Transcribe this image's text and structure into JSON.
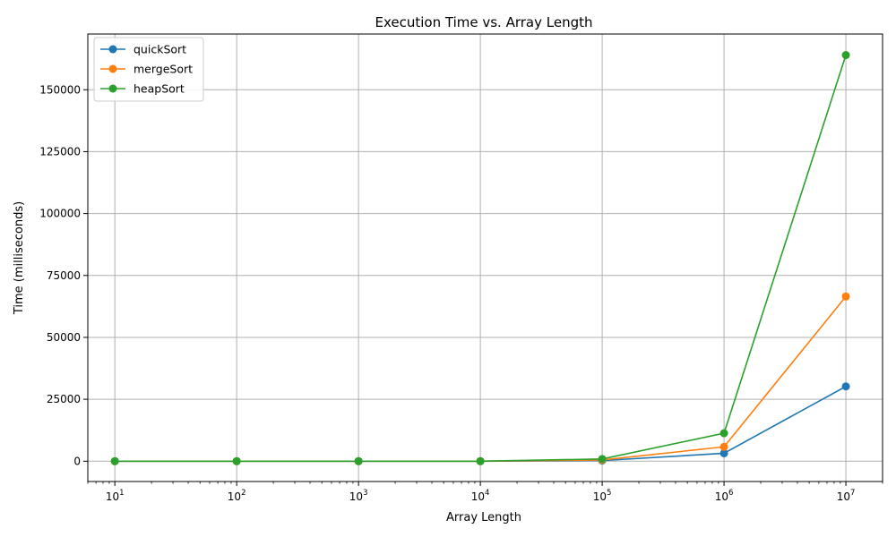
{
  "chart_data": {
    "type": "line",
    "title": "Execution Time vs. Array Length",
    "xlabel": "Array Length",
    "ylabel": "Time (milliseconds)",
    "x_scale": "log",
    "xlim": [
      6,
      20000000
    ],
    "ylim": [
      -8200,
      172500
    ],
    "x": [
      10,
      100,
      1000,
      10000,
      100000,
      1000000,
      10000000
    ],
    "x_ticks": [
      {
        "value": 10,
        "base": "10",
        "exp": "1"
      },
      {
        "value": 100,
        "base": "10",
        "exp": "2"
      },
      {
        "value": 1000,
        "base": "10",
        "exp": "3"
      },
      {
        "value": 10000,
        "base": "10",
        "exp": "4"
      },
      {
        "value": 100000,
        "base": "10",
        "exp": "5"
      },
      {
        "value": 1000000,
        "base": "10",
        "exp": "6"
      },
      {
        "value": 10000000,
        "base": "10",
        "exp": "7"
      }
    ],
    "y_ticks": [
      {
        "value": 0,
        "label": "0"
      },
      {
        "value": 25000,
        "label": "25000"
      },
      {
        "value": 50000,
        "label": "50000"
      },
      {
        "value": 75000,
        "label": "75000"
      },
      {
        "value": 100000,
        "label": "100000"
      },
      {
        "value": 125000,
        "label": "125000"
      },
      {
        "value": 150000,
        "label": "150000"
      }
    ],
    "grid": true,
    "legend_position": "top-left",
    "series": [
      {
        "name": "quickSort",
        "color": "#1f77b4",
        "values": [
          0,
          0,
          0,
          5,
          250,
          3200,
          30200
        ]
      },
      {
        "name": "mergeSort",
        "color": "#ff7f0e",
        "values": [
          0,
          0,
          0,
          5,
          500,
          5800,
          66500
        ]
      },
      {
        "name": "heapSort",
        "color": "#2ca02c",
        "values": [
          0,
          0,
          0,
          10,
          900,
          11300,
          164000
        ]
      }
    ]
  }
}
